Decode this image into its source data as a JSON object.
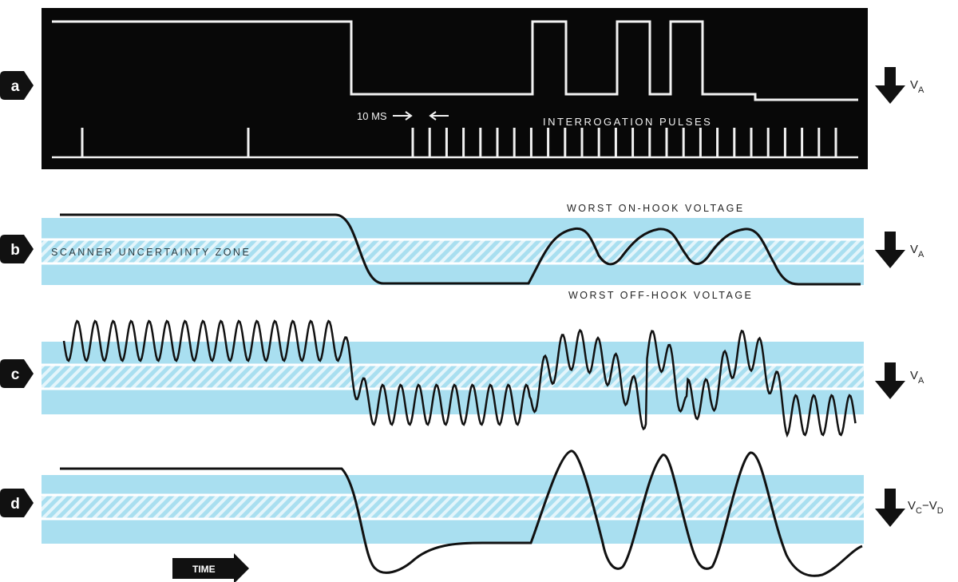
{
  "panels": [
    {
      "key": "a",
      "label": "a",
      "signal": {
        "main": "V",
        "sub": "A"
      }
    },
    {
      "key": "b",
      "label": "b",
      "signal": {
        "main": "V",
        "sub": "A"
      }
    },
    {
      "key": "c",
      "label": "c",
      "signal": {
        "main": "V",
        "sub": "A"
      }
    },
    {
      "key": "d",
      "label": "d",
      "signal": {
        "main": "V",
        "sub": "C",
        "mid": "−V",
        "sub2": "D"
      }
    }
  ],
  "annotations": {
    "interval": "10 MS",
    "pulses": "INTERROGATION PULSES",
    "on_hook": "WORST ON-HOOK VOLTAGE",
    "off_hook": "WORST OFF-HOOK VOLTAGE",
    "zone": "SCANNER UNCERTAINTY ZONE",
    "time": "TIME"
  },
  "colors": {
    "band": "#a9dff0",
    "hatch": "#e4f5fb",
    "trace": "#111111",
    "scope_bg": "#080808",
    "scope_trace": "#f2f2f2",
    "marker": "#111111"
  },
  "icons": [
    "label-marker-icon",
    "down-arrow-icon",
    "right-arrow-icon"
  ]
}
